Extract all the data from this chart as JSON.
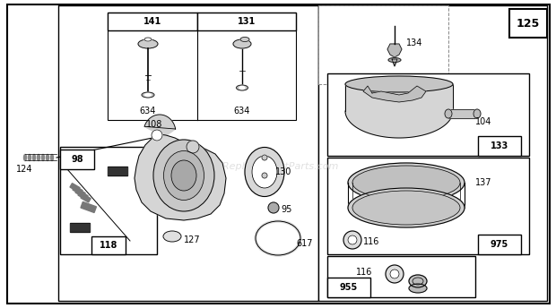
{
  "bg_color": "#ffffff",
  "watermark": "eReplacementParts.com",
  "line_color": "#000000",
  "gray_light": "#cccccc",
  "gray_mid": "#aaaaaa",
  "gray_dark": "#555555",
  "box_bg": "#f5f5f5"
}
